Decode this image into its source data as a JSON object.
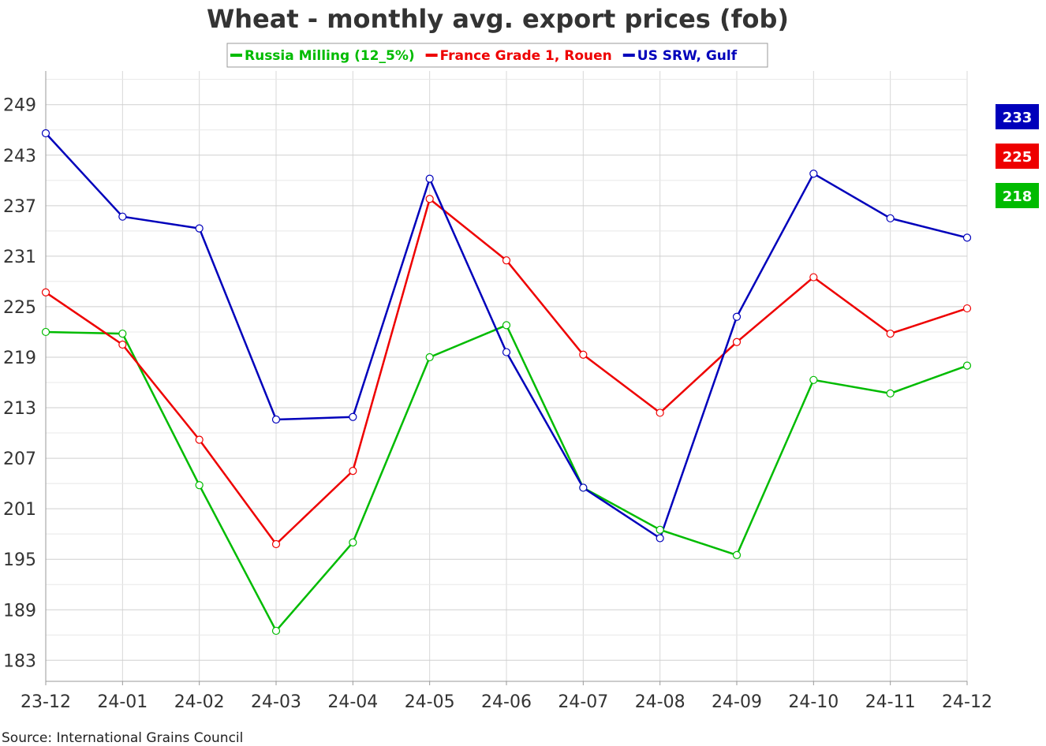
{
  "chart_data": {
    "type": "line",
    "title": "Wheat - monthly avg. export prices (fob)",
    "categories": [
      "23-12",
      "24-01",
      "24-02",
      "24-03",
      "24-04",
      "24-05",
      "24-06",
      "24-07",
      "24-08",
      "24-09",
      "24-10",
      "24-11",
      "24-12"
    ],
    "series": [
      {
        "name": "Russia Milling (12_5%)",
        "color": "#00bb00",
        "values": [
          222,
          221.8,
          203.8,
          186.5,
          197,
          219,
          222.8,
          203.5,
          198.5,
          195.5,
          216.3,
          214.7,
          218
        ],
        "end_label": "218"
      },
      {
        "name": "France Grade 1, Rouen",
        "color": "#ee0000",
        "values": [
          226.7,
          220.5,
          209.2,
          196.8,
          205.5,
          237.8,
          230.5,
          219.3,
          212.4,
          220.8,
          228.5,
          221.8,
          224.8
        ],
        "end_label": "225"
      },
      {
        "name": "US SRW, Gulf",
        "color": "#0000bb",
        "values": [
          245.6,
          235.7,
          234.3,
          211.6,
          211.9,
          240.2,
          219.6,
          203.5,
          197.5,
          223.8,
          240.8,
          235.5,
          233.2
        ],
        "end_label": "233"
      }
    ],
    "ylim": [
      180.5,
      253
    ],
    "yticks": [
      "249",
      "243",
      "237",
      "231",
      "225",
      "219",
      "213",
      "207",
      "201",
      "195",
      "189",
      "183"
    ],
    "grid": true,
    "legend": "top",
    "xlabel": "",
    "ylabel": ""
  },
  "footer": {
    "source": "Source: International Grains Council"
  }
}
